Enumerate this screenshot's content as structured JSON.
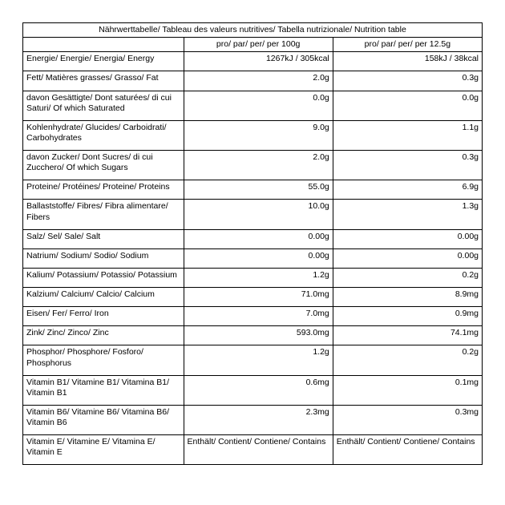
{
  "table": {
    "title": "Nährwerttabelle/ Tableau des valeurs nutritives/ Tabella nutrizionale/ Nutrition table",
    "columns": {
      "per100": "pro/ par/ per/ per 100g",
      "per12_5": "pro/ par/ per/ per 12.5g"
    },
    "border_color": "#000000",
    "background_color": "#ffffff",
    "text_color": "#000000",
    "font_size_pt": 8,
    "rows": [
      {
        "label": "Energie/ Energie/ Energia/ Energy",
        "v100": "1267kJ / 305kcal",
        "v12": "158kJ / 38kcal",
        "align": "right"
      },
      {
        "label": "Fett/ Matières grasses/ Grasso/ Fat",
        "v100": "2.0g",
        "v12": "0.3g",
        "align": "right"
      },
      {
        "label": "davon Gesättigte/ Dont saturées/ di cui Saturi/ Of which Saturated",
        "v100": "0.0g",
        "v12": "0.0g",
        "align": "right"
      },
      {
        "label": "Kohlenhydrate/ Glucides/ Carboidrati/ Carbohydrates",
        "v100": "9.0g",
        "v12": "1.1g",
        "align": "right"
      },
      {
        "label": "davon Zucker/ Dont Sucres/ di cui Zucchero/ Of which Sugars",
        "v100": "2.0g",
        "v12": "0.3g",
        "align": "right"
      },
      {
        "label": "Proteine/ Protéines/  Proteine/ Proteins",
        "v100": "55.0g",
        "v12": "6.9g",
        "align": "right"
      },
      {
        "label": "Ballaststoffe/ Fibres/ Fibra alimentare/ Fibers",
        "v100": "10.0g",
        "v12": "1.3g",
        "align": "right"
      },
      {
        "label": "Salz/ Sel/ Sale/ Salt",
        "v100": "0.00g",
        "v12": "0.00g",
        "align": "right"
      },
      {
        "label": "Natrium/ Sodium/ Sodio/ Sodium",
        "v100": "0.00g",
        "v12": "0.00g",
        "align": "right"
      },
      {
        "label": "Kalium/ Potassium/ Potassio/ Potassium",
        "v100": "1.2g",
        "v12": "0.2g",
        "align": "right"
      },
      {
        "label": "Kalzium/ Calcium/ Calcio/ Calcium",
        "v100": "71.0mg",
        "v12": "8.9mg",
        "align": "right"
      },
      {
        "label": "Eisen/ Fer/ Ferro/ Iron",
        "v100": "7.0mg",
        "v12": "0.9mg",
        "align": "right"
      },
      {
        "label": "Zink/ Zinc/ Zinco/ Zinc",
        "v100": "593.0mg",
        "v12": "74.1mg",
        "align": "right"
      },
      {
        "label": "Phosphor/ Phosphore/ Fosforo/ Phosphorus",
        "v100": "1.2g",
        "v12": "0.2g",
        "align": "right"
      },
      {
        "label": "Vitamin B1/ Vitamine B1/ Vitamina B1/ Vitamin B1",
        "v100": "0.6mg",
        "v12": "0.1mg",
        "align": "right"
      },
      {
        "label": "Vitamin B6/ Vitamine B6/ Vitamina B6/ Vitamin B6",
        "v100": "2.3mg",
        "v12": "0.3mg",
        "align": "right"
      },
      {
        "label": "Vitamin E/ Vitamine E/ Vitamina E/ Vitamin E",
        "v100": "Enthält/ Contient/ Contiene/ Contains",
        "v12": "Enthält/ Contient/ Contiene/ Contains",
        "align": "left"
      }
    ]
  }
}
